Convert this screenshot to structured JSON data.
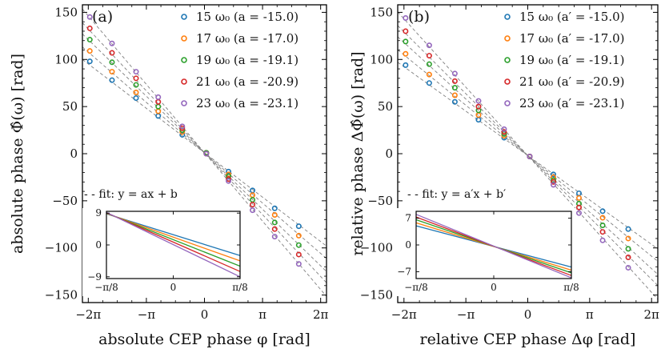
{
  "colors": [
    "#1f77b4",
    "#ff7f0e",
    "#2ca02c",
    "#d62728",
    "#9467bd"
  ],
  "chart_data": [
    {
      "type": "scatter",
      "panel_label": "(a)",
      "xlabel": "absolute CEP phase φ [rad]",
      "ylabel": "absolute phase Φ̂(ω) [rad]",
      "xlim": [
        -6.6,
        6.6
      ],
      "ylim": [
        -158,
        158
      ],
      "xticks": [
        {
          "value": -6.2832,
          "label": "−2π"
        },
        {
          "value": -3.1416,
          "label": "−π"
        },
        {
          "value": 0,
          "label": "0"
        },
        {
          "value": 3.1416,
          "label": "π"
        },
        {
          "value": 6.2832,
          "label": "2π"
        }
      ],
      "yticks": [
        {
          "value": 150,
          "label": "150"
        },
        {
          "value": 100,
          "label": "100"
        },
        {
          "value": 50,
          "label": "50"
        },
        {
          "value": 0,
          "label": "0"
        },
        {
          "value": -50,
          "label": "−50"
        },
        {
          "value": -100,
          "label": "−100"
        },
        {
          "value": -150,
          "label": "−150"
        }
      ],
      "fit_label": "- - fit: y = ax + b",
      "x": [
        -6.2,
        -5.0,
        -3.7,
        -2.5,
        -1.2,
        0.1,
        1.3,
        2.6,
        3.8,
        5.1
      ],
      "series": [
        {
          "name": "15 ω₀ (a = -15.0)",
          "values": [
            98,
            78,
            59,
            40,
            20,
            1,
            -19,
            -39,
            -58,
            -77
          ],
          "fit": {
            "a": -15.0,
            "b": 1
          }
        },
        {
          "name": "17 ω₀ (a = -17.0)",
          "values": [
            109,
            87,
            65,
            45,
            23,
            1,
            -22,
            -44,
            -65,
            -87
          ],
          "fit": {
            "a": -17.0,
            "b": 1
          }
        },
        {
          "name": "19 ω₀ (a = -19.1)",
          "values": [
            121,
            97,
            73,
            50,
            25,
            1,
            -24,
            -49,
            -73,
            -97
          ],
          "fit": {
            "a": -19.1,
            "b": 1
          }
        },
        {
          "name": "21 ω₀ (a = -20.9)",
          "values": [
            133,
            107,
            80,
            55,
            27,
            0,
            -27,
            -54,
            -80,
            -107
          ],
          "fit": {
            "a": -20.9,
            "b": 1
          }
        },
        {
          "name": "23 ω₀ (a = -23.1)",
          "values": [
            145,
            117,
            87,
            60,
            29,
            0,
            -29,
            -60,
            -88,
            -117
          ],
          "fit": {
            "a": -23.1,
            "b": 1
          }
        }
      ],
      "inset": {
        "xlim": [
          -0.3927,
          0.3927
        ],
        "ylim": [
          -9.5,
          9.5
        ],
        "xticks": [
          {
            "value": -0.3927,
            "label": "−π/8"
          },
          {
            "value": 0,
            "label": "0"
          },
          {
            "value": 0.3927,
            "label": "π/8"
          }
        ],
        "yticks": [
          {
            "value": 9,
            "label": "9"
          },
          {
            "value": 0,
            "label": "0"
          },
          {
            "value": -9,
            "label": "−9"
          }
        ],
        "lines": [
          {
            "y_left": 8.8,
            "y_right": -3.0
          },
          {
            "y_left": 8.9,
            "y_right": -4.5
          },
          {
            "y_left": 9.0,
            "y_right": -6.0
          },
          {
            "y_left": 9.1,
            "y_right": -7.5
          },
          {
            "y_left": 9.2,
            "y_right": -9.0
          }
        ]
      }
    },
    {
      "type": "scatter",
      "panel_label": "(b)",
      "xlabel": "relative CEP phase Δφ [rad]",
      "ylabel": "relative phase ΔΦ̂(ω) [rad]",
      "xlim": [
        -6.6,
        6.6
      ],
      "ylim": [
        -158,
        158
      ],
      "xticks": [
        {
          "value": -6.2832,
          "label": "−2π"
        },
        {
          "value": -3.1416,
          "label": "−π"
        },
        {
          "value": 0,
          "label": "0"
        },
        {
          "value": 3.1416,
          "label": "π"
        },
        {
          "value": 6.2832,
          "label": "2π"
        }
      ],
      "yticks": [
        {
          "value": 150,
          "label": "150"
        },
        {
          "value": 100,
          "label": "100"
        },
        {
          "value": 50,
          "label": "50"
        },
        {
          "value": 0,
          "label": "0"
        },
        {
          "value": -50,
          "label": "−50"
        },
        {
          "value": -100,
          "label": "−100"
        },
        {
          "value": -150,
          "label": "−150"
        }
      ],
      "fit_label": "- - fit: y = a′x + b′",
      "x": [
        -6.2,
        -5.0,
        -3.7,
        -2.5,
        -1.2,
        0.1,
        1.3,
        2.6,
        3.8,
        5.1
      ],
      "series": [
        {
          "name": "15 ω₀ (a′ = -15.0)",
          "values": [
            94,
            75,
            55,
            36,
            17,
            -3,
            -22,
            -42,
            -61,
            -80
          ],
          "fit": {
            "a": -15.0,
            "b": -2
          }
        },
        {
          "name": "17 ω₀ (a′ = -17.0)",
          "values": [
            106,
            84,
            62,
            41,
            19,
            -3,
            -25,
            -47,
            -68,
            -90
          ],
          "fit": {
            "a": -17.0,
            "b": -2
          }
        },
        {
          "name": "19 ω₀ (a′ = -19.1)",
          "values": [
            119,
            95,
            70,
            46,
            21,
            -3,
            -28,
            -53,
            -76,
            -101
          ],
          "fit": {
            "a": -19.1,
            "b": -2
          }
        },
        {
          "name": "21 ω₀ (a′ = -20.9)",
          "values": [
            130,
            104,
            77,
            50,
            23,
            -3,
            -30,
            -57,
            -83,
            -110
          ],
          "fit": {
            "a": -20.9,
            "b": -2
          }
        },
        {
          "name": "23 ω₀ (a′ = -23.1)",
          "values": [
            144,
            115,
            85,
            56,
            26,
            -3,
            -33,
            -63,
            -92,
            -121
          ],
          "fit": {
            "a": -23.1,
            "b": -2
          }
        }
      ],
      "inset": {
        "xlim": [
          -0.3927,
          0.3927
        ],
        "ylim": [
          -8.8,
          8.8
        ],
        "xticks": [
          {
            "value": -0.3927,
            "label": "−π/8"
          },
          {
            "value": 0,
            "label": "0"
          },
          {
            "value": 0.3927,
            "label": "π/8"
          }
        ],
        "yticks": [
          {
            "value": 7,
            "label": "7"
          },
          {
            "value": 0,
            "label": "0"
          },
          {
            "value": -7,
            "label": "−7"
          }
        ],
        "lines": [
          {
            "y_left": 5.0,
            "y_right": -5.8
          },
          {
            "y_left": 5.8,
            "y_right": -6.6
          },
          {
            "y_left": 6.6,
            "y_right": -7.3
          },
          {
            "y_left": 7.3,
            "y_right": -8.0
          },
          {
            "y_left": 8.0,
            "y_right": -8.6
          }
        ]
      }
    }
  ]
}
